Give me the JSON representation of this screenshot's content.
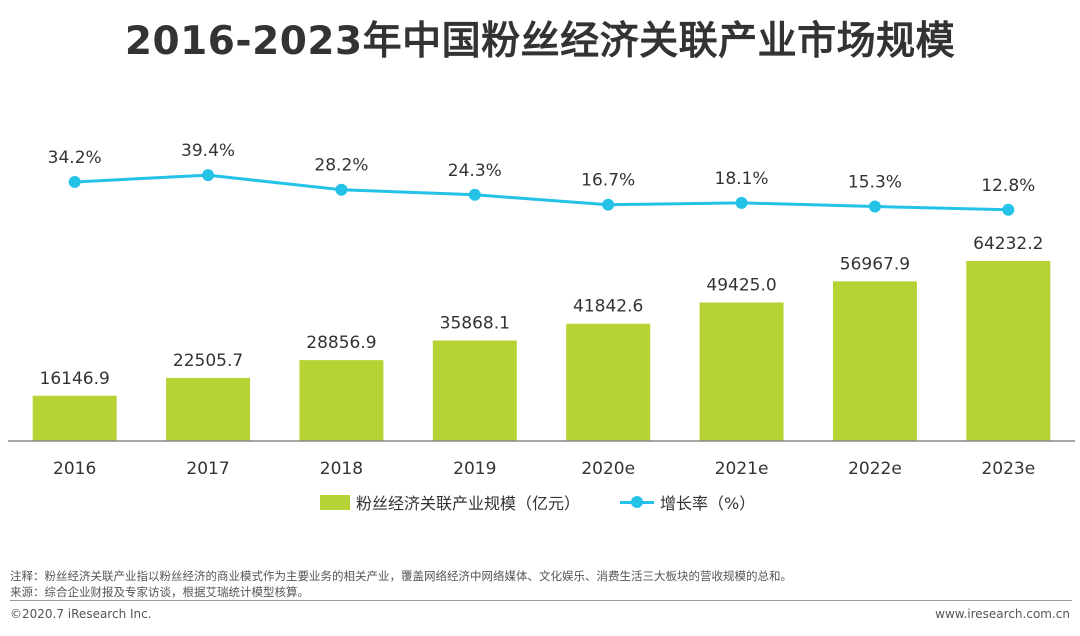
{
  "title": "2016-2023年中国粉丝经济关联产业市场规模",
  "colors": {
    "bar": "#b5d334",
    "line": "#25c2e8",
    "axis": "#888888",
    "text": "#333333"
  },
  "chart_data": {
    "type": "bar+line",
    "categories": [
      "2016",
      "2017",
      "2018",
      "2019",
      "2020e",
      "2021e",
      "2022e",
      "2023e"
    ],
    "series": [
      {
        "name": "粉丝经济关联产业规模（亿元）",
        "type": "bar",
        "values": [
          16146.9,
          22505.7,
          28856.9,
          35868.1,
          41842.6,
          49425.0,
          56967.9,
          64232.2
        ],
        "labels": [
          "16146.9",
          "22505.7",
          "28856.9",
          "35868.1",
          "41842.6",
          "49425.0",
          "56967.9",
          "64232.2"
        ]
      },
      {
        "name": "增长率（%）",
        "type": "line",
        "values": [
          34.2,
          39.4,
          28.2,
          24.3,
          16.7,
          18.1,
          15.3,
          12.8
        ],
        "labels": [
          "34.2%",
          "39.4%",
          "28.2%",
          "24.3%",
          "16.7%",
          "18.1%",
          "15.3%",
          "12.8%"
        ]
      }
    ],
    "legend_position": "bottom-center"
  },
  "legend": {
    "bar_label": "粉丝经济关联产业规模（亿元）",
    "line_label": "增长率（%）"
  },
  "notes": {
    "note": "注释：粉丝经济关联产业指以粉丝经济的商业模式作为主要业务的相关产业，覆盖网络经济中网络媒体、文化娱乐、消费生活三大板块的营收规模的总和。",
    "source": "来源：综合企业财报及专家访谈，根据艾瑞统计模型核算。"
  },
  "footer": {
    "copyright": "©2020.7 iResearch Inc.",
    "website": "www.iresearch.com.cn"
  }
}
